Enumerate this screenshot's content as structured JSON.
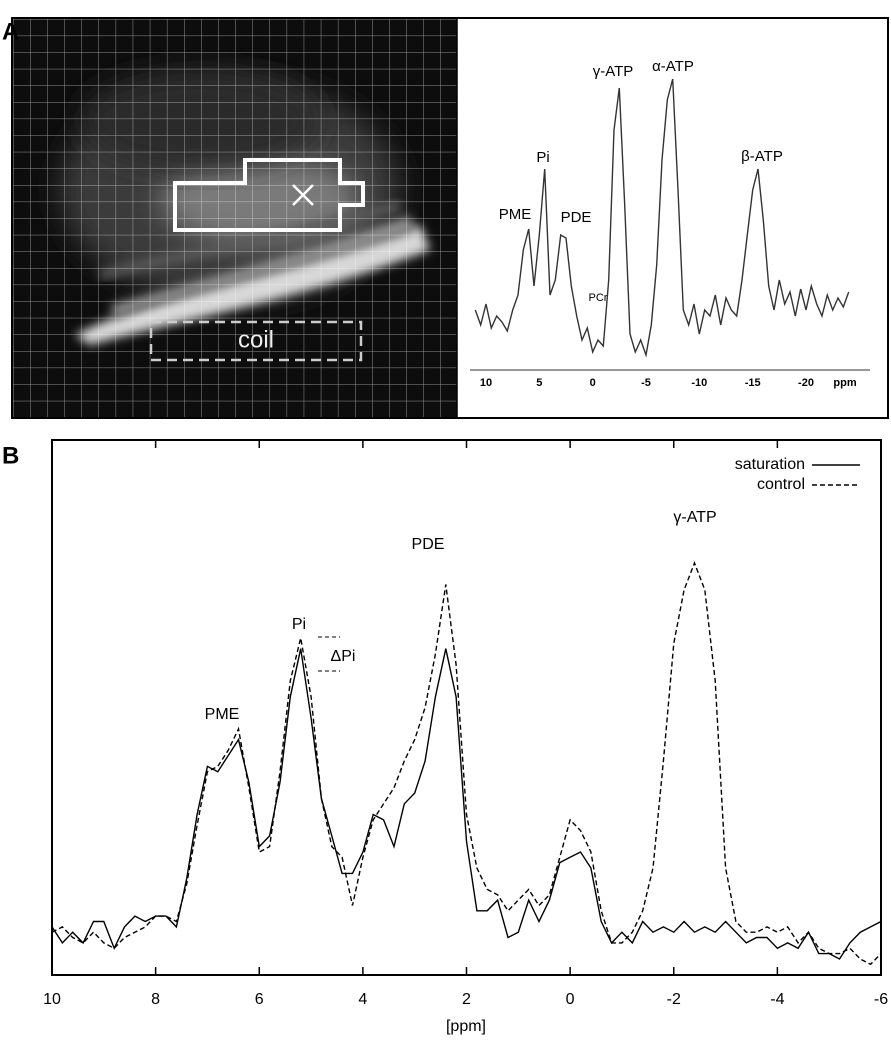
{
  "chart_data": [
    {
      "type": "line",
      "panel_label": "A",
      "image_label": "coil",
      "x_label": "ppm",
      "xlim": [
        11.5,
        -26
      ],
      "ylim": [
        0,
        100
      ],
      "xticks": [
        10,
        5,
        0,
        -5,
        -10,
        -15,
        -20
      ],
      "color": "#333333",
      "annotations": [
        "PME",
        "Pi",
        "PDE",
        "PCr",
        "γ-ATP",
        "α-ATP",
        "β-ATP"
      ],
      "x": [
        11,
        10.5,
        10,
        9.5,
        9,
        8.5,
        8,
        7.5,
        7,
        6.5,
        6,
        5.5,
        5,
        4.5,
        4,
        3.5,
        3,
        2.5,
        2,
        1.5,
        1,
        0.5,
        0,
        -0.5,
        -1,
        -1.5,
        -2,
        -2.5,
        -3,
        -3.5,
        -4,
        -4.5,
        -5,
        -5.5,
        -6,
        -6.5,
        -7,
        -7.5,
        -8,
        -8.5,
        -9,
        -9.5,
        -10,
        -10.5,
        -11,
        -11.5,
        -12,
        -12.5,
        -13,
        -13.5,
        -14,
        -14.5,
        -15,
        -15.5,
        -16,
        -16.5,
        -17,
        -17.5,
        -18,
        -18.5,
        -19,
        -19.5,
        -20,
        -20.5,
        -21,
        -21.5,
        -22,
        -22.5,
        -23,
        -23.5,
        -24
      ],
      "values": [
        20,
        15,
        22,
        14,
        18,
        16,
        13,
        20,
        25,
        40,
        47,
        28,
        45,
        67,
        25,
        30,
        45,
        44,
        28,
        18,
        10,
        14,
        6,
        10,
        8,
        30,
        80,
        94,
        55,
        12,
        6,
        10,
        5,
        15,
        35,
        70,
        90,
        97,
        60,
        20,
        15,
        22,
        12,
        20,
        18,
        25,
        15,
        24,
        20,
        18,
        30,
        45,
        60,
        67,
        50,
        28,
        20,
        30,
        22,
        26,
        18,
        27,
        20,
        28,
        22,
        18,
        25,
        20,
        24,
        21,
        26
      ]
    },
    {
      "type": "line",
      "panel_label": "B",
      "x_label": "[ppm]",
      "xlim": [
        10,
        -6
      ],
      "ylim": [
        0,
        100
      ],
      "xticks": [
        10,
        8,
        6,
        4,
        2,
        0,
        -2,
        -4,
        -6
      ],
      "annotations": [
        "PME",
        "Pi",
        "ΔPi",
        "PDE",
        "γ-ATP"
      ],
      "legend": "upper right",
      "x": [
        10,
        9.8,
        9.6,
        9.4,
        9.2,
        9,
        8.8,
        8.6,
        8.4,
        8.2,
        8,
        7.8,
        7.6,
        7.4,
        7.2,
        7,
        6.8,
        6.6,
        6.4,
        6.2,
        6,
        5.8,
        5.6,
        5.4,
        5.2,
        5,
        4.8,
        4.6,
        4.4,
        4.2,
        4,
        3.8,
        3.6,
        3.4,
        3.2,
        3,
        2.8,
        2.6,
        2.4,
        2.2,
        2,
        1.8,
        1.6,
        1.4,
        1.2,
        1,
        0.8,
        0.6,
        0.4,
        0.2,
        0,
        -0.2,
        -0.4,
        -0.6,
        -0.8,
        -1,
        -1.2,
        -1.4,
        -1.6,
        -1.8,
        -2,
        -2.2,
        -2.4,
        -2.6,
        -2.8,
        -3,
        -3.2,
        -3.4,
        -3.6,
        -3.8,
        -4,
        -4.2,
        -4.4,
        -4.6,
        -4.8,
        -5,
        -5.2,
        -5.4,
        -5.6,
        -5.8,
        -6
      ],
      "series": [
        {
          "name": "saturation",
          "color": "#000000",
          "linestyle": "solid",
          "values": [
            9,
            6,
            8,
            6,
            10,
            10,
            5,
            9,
            11,
            10,
            11,
            11,
            9,
            18,
            30,
            39,
            38,
            41,
            44,
            36,
            24,
            26,
            36,
            52,
            61,
            48,
            33,
            26,
            19,
            19,
            23,
            30,
            29,
            24,
            32,
            34,
            40,
            52,
            61,
            52,
            25,
            12,
            12,
            14,
            7,
            8,
            14,
            10,
            14,
            21,
            22,
            23,
            20,
            10,
            6,
            8,
            6,
            10,
            8,
            9,
            8,
            10,
            8,
            9,
            8,
            10,
            8,
            6,
            7,
            7,
            5,
            6,
            5,
            8,
            4,
            4,
            3,
            6,
            8,
            9,
            10
          ]
        },
        {
          "name": "control",
          "color": "#000000",
          "linestyle": "dashed",
          "values": [
            8,
            9,
            7,
            6,
            8,
            6,
            5,
            7,
            8,
            9,
            11,
            11,
            10,
            17,
            28,
            38,
            39,
            42,
            46,
            35,
            23,
            24,
            38,
            55,
            63,
            52,
            33,
            24,
            22,
            13,
            22,
            29,
            32,
            35,
            40,
            44,
            50,
            60,
            73,
            58,
            30,
            20,
            16,
            15,
            12,
            14,
            16,
            13,
            15,
            22,
            29,
            27,
            23,
            12,
            6,
            6,
            8,
            12,
            20,
            40,
            62,
            72,
            77,
            72,
            55,
            20,
            10,
            8,
            8,
            9,
            8,
            9,
            6,
            8,
            5,
            4,
            4,
            5,
            3,
            2,
            4
          ]
        }
      ]
    }
  ]
}
